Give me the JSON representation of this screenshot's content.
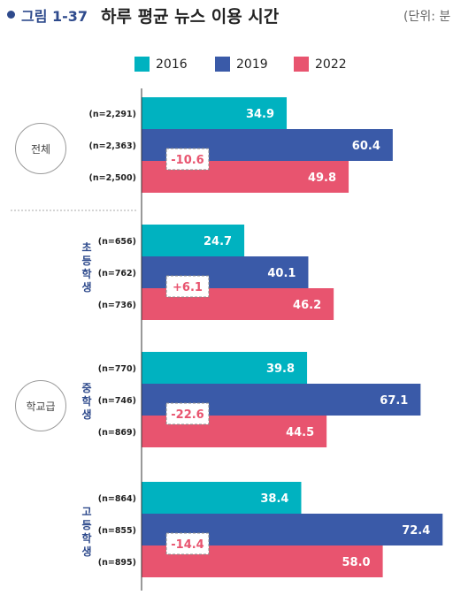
{
  "header": {
    "figure_label": "그림 1-37",
    "title": "하루 평균 뉴스 이용 시간",
    "unit": "(단위: 분"
  },
  "legend": {
    "items": [
      {
        "label": "2016",
        "color": "#00b2c0"
      },
      {
        "label": "2019",
        "color": "#3a5aa8"
      },
      {
        "label": "2022",
        "color": "#e8546f"
      }
    ]
  },
  "group_labels": {
    "overall": "전체",
    "school_level": "학교급",
    "elementary": "초등학생",
    "middle": "중학생",
    "high": "고등학생"
  },
  "chart_data": {
    "type": "bar",
    "orientation": "horizontal",
    "title": "하루 평균 뉴스 이용 시간",
    "unit": "분",
    "series_names": [
      "2016",
      "2019",
      "2022"
    ],
    "colors": [
      "#00b2c0",
      "#3a5aa8",
      "#e8546f"
    ],
    "xlim": [
      0,
      75
    ],
    "groups": [
      {
        "name": "전체",
        "values": [
          34.9,
          60.4,
          49.8
        ],
        "n": [
          "(n=2,291)",
          "(n=2,363)",
          "(n=2,500)"
        ],
        "change": "-10.6",
        "change_color": "#e8546f"
      },
      {
        "name": "초등학생",
        "values": [
          24.7,
          40.1,
          46.2
        ],
        "n": [
          "(n=656)",
          "(n=762)",
          "(n=736)"
        ],
        "change": "+6.1",
        "change_color": "#e8546f"
      },
      {
        "name": "중학생",
        "values": [
          39.8,
          67.1,
          44.5
        ],
        "n": [
          "(n=770)",
          "(n=746)",
          "(n=869)"
        ],
        "change": "-22.6",
        "change_color": "#e8546f"
      },
      {
        "name": "고등학생",
        "values": [
          38.4,
          72.4,
          58.0
        ],
        "n": [
          "(n=864)",
          "(n=855)",
          "(n=895)"
        ],
        "change": "-14.4",
        "change_color": "#e8546f"
      }
    ]
  }
}
